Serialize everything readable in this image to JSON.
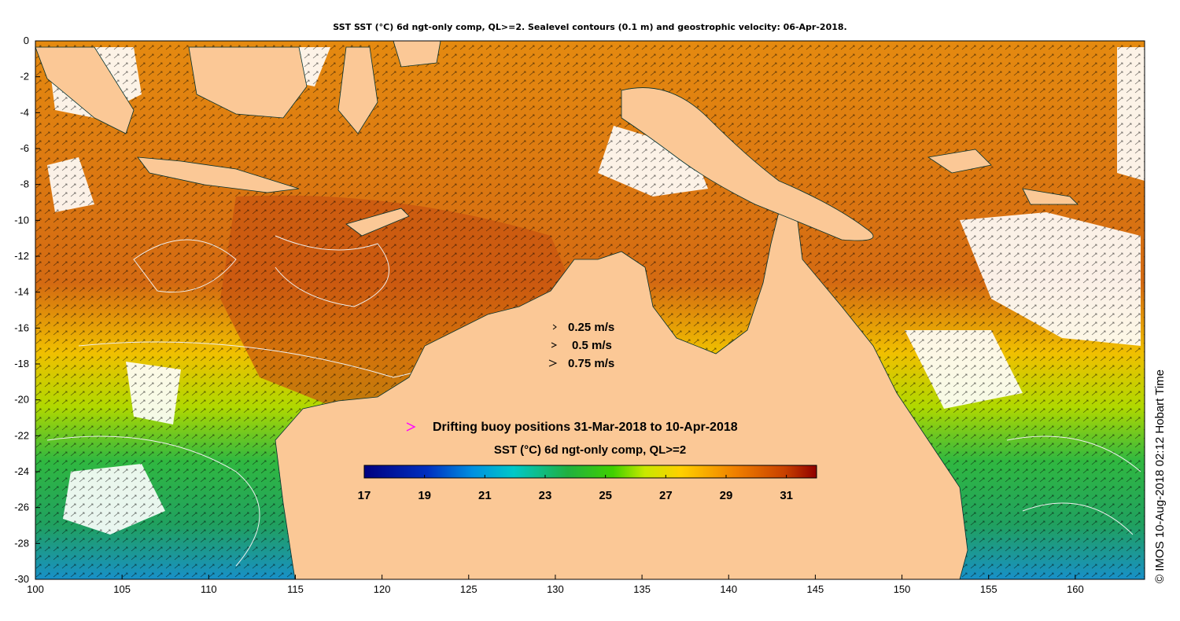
{
  "title": "SST SST (°C) 6d ngt-only comp, QL>=2. Sealevel contours (0.1 m) and geostrophic velocity: 06-Apr-2018.",
  "credit": "© IMOS 10-Aug-2018 02:12 Hobart Time",
  "axes": {
    "x_ticks": [
      "100",
      "105",
      "110",
      "115",
      "120",
      "125",
      "130",
      "135",
      "140",
      "145",
      "150",
      "155",
      "160"
    ],
    "y_ticks": [
      "0",
      "-2",
      "-4",
      "-6",
      "-8",
      "-10",
      "-12",
      "-14",
      "-16",
      "-18",
      "-20",
      "-22",
      "-24",
      "-26",
      "-28",
      "-30"
    ],
    "xlim": [
      100,
      164
    ],
    "ylim": [
      -30,
      0
    ]
  },
  "velocity_legend": [
    {
      "label": "0.25 m/s"
    },
    {
      "label": "0.5 m/s"
    },
    {
      "label": "0.75 m/s"
    }
  ],
  "buoy_legend": {
    "label": "Drifting buoy positions 31-Mar-2018 to 10-Apr-2018",
    "marker_color": "#ff00ff"
  },
  "colorbar": {
    "title": "SST (°C) 6d ngt-only comp, QL>=2",
    "ticks": [
      "17",
      "19",
      "21",
      "23",
      "25",
      "27",
      "29",
      "31"
    ],
    "range": [
      17,
      32
    ]
  },
  "colors": {
    "land": "#fbc896",
    "ocean_warm": "#e07a10",
    "ocean_hot": "#c24a0c",
    "ocean_mid": "#f0b000",
    "ocean_cool": "#40c030",
    "ocean_cold": "#20a0c0",
    "contour": "#e8e8e8",
    "coastline": "#00d0c0"
  }
}
